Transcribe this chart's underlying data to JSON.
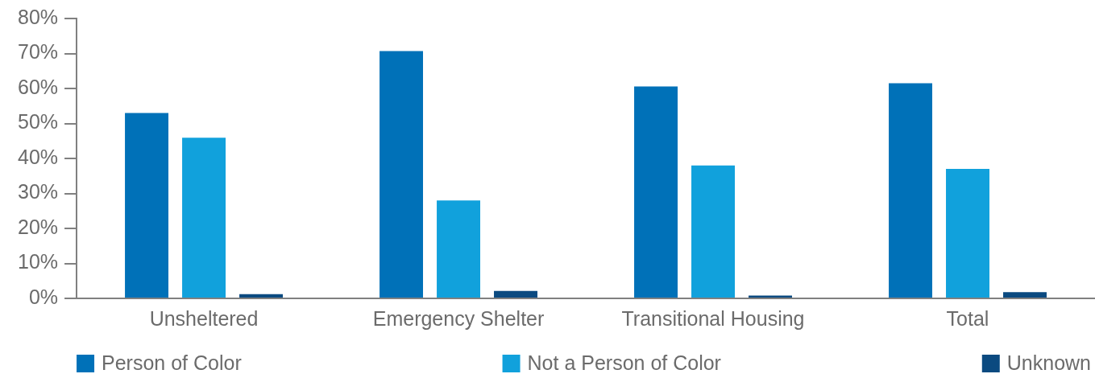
{
  "chart_data": {
    "type": "bar",
    "categories": [
      "Unsheltered",
      "Emergency Shelter",
      "Transitional Housing",
      "Total"
    ],
    "series": [
      {
        "name": "Person of Color",
        "color": "#0071b8",
        "values": [
          53,
          70.7,
          60.6,
          61.5
        ]
      },
      {
        "name": "Not a Person of Color",
        "color": "#11a1dc",
        "values": [
          45.9,
          28,
          38,
          37
        ]
      },
      {
        "name": "Unknown",
        "color": "#0b4a80",
        "values": [
          1.2,
          2.1,
          0.8,
          1.8
        ]
      }
    ],
    "ylim": [
      0,
      80
    ],
    "yticks": [
      {
        "value": 0,
        "label": "0%"
      },
      {
        "value": 10,
        "label": "10%"
      },
      {
        "value": 20,
        "label": "20%"
      },
      {
        "value": 30,
        "label": "30%"
      },
      {
        "value": 40,
        "label": "40%"
      },
      {
        "value": 50,
        "label": "50%"
      },
      {
        "value": 60,
        "label": "60%"
      },
      {
        "value": 70,
        "label": "70%"
      },
      {
        "value": 80,
        "label": "80%"
      }
    ],
    "grid": false,
    "legend": "bottom"
  }
}
